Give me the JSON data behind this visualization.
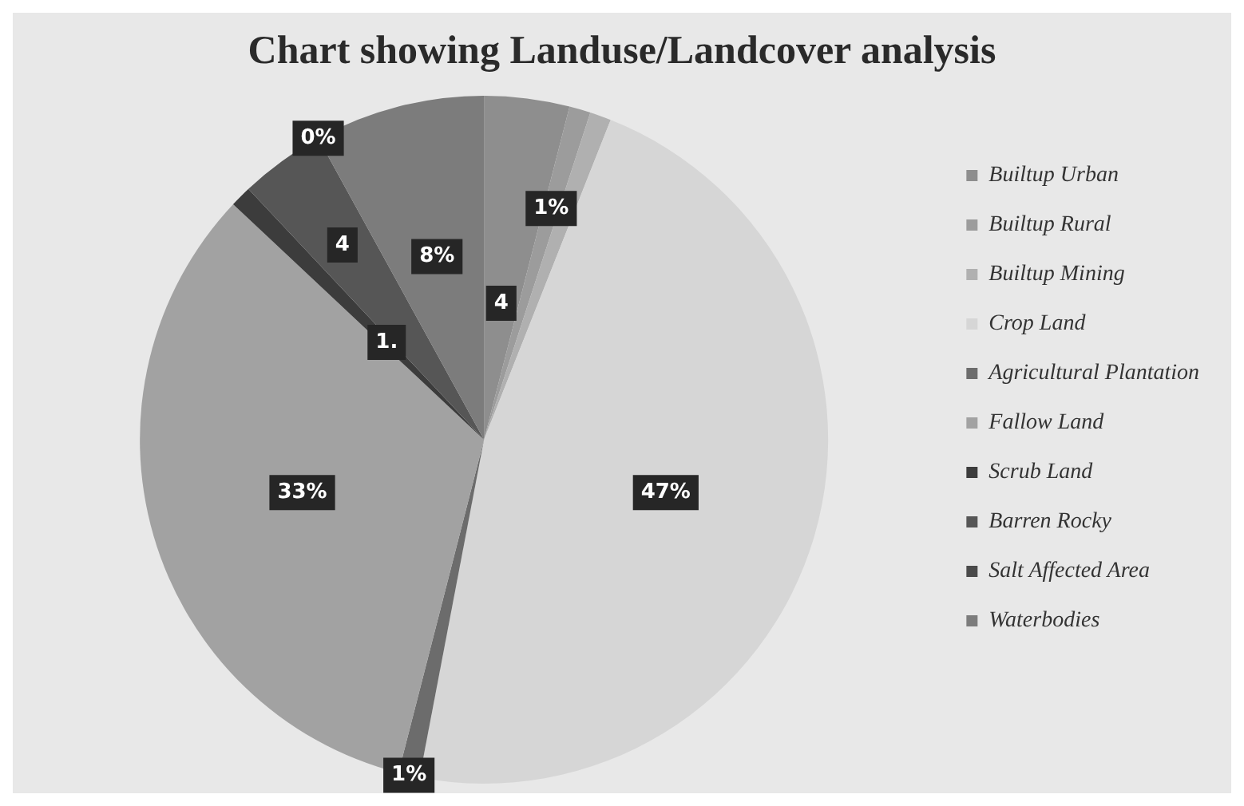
{
  "chart_data": {
    "type": "pie",
    "title": "Chart showing Landuse/Landcover analysis",
    "categories": [
      "Builtup Urban",
      "Builtup Rural",
      "Builtup Mining",
      "Crop Land",
      "Agricultural Plantation",
      "Fallow Land",
      "Scrub Land",
      "Barren Rocky",
      "Salt Affected Area",
      "Waterbodies"
    ],
    "values": [
      4,
      1,
      1,
      47,
      1,
      33,
      1,
      4,
      0,
      8
    ],
    "value_labels": [
      "4",
      "1%",
      null,
      "47%",
      "1%",
      "33%",
      "1.",
      "4",
      "0%",
      "8%"
    ],
    "colors": [
      "#8e8e8e",
      "#9c9c9c",
      "#b0b0b0",
      "#d6d6d6",
      "#6c6c6c",
      "#a2a2a2",
      "#3c3c3c",
      "#565656",
      "#4a4a4a",
      "#7c7c7c"
    ],
    "legend": "right"
  }
}
